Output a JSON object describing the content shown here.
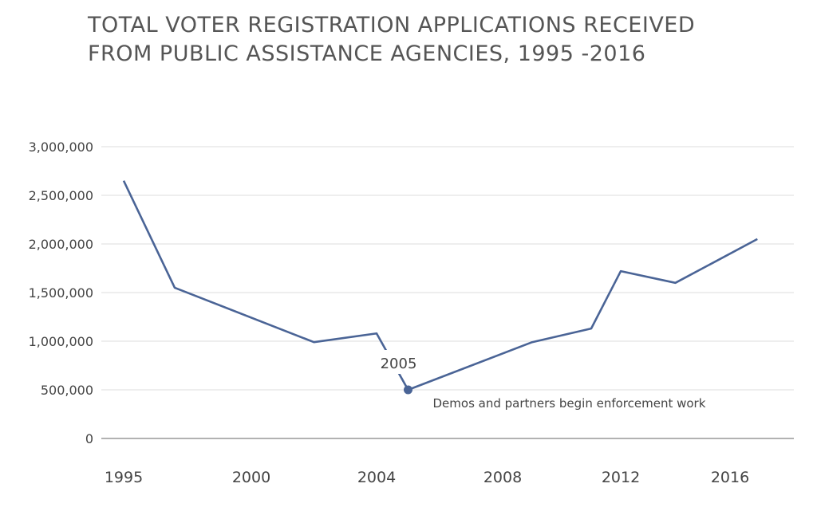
{
  "title_line1": "TOTAL VOTER REGISTRATION APPLICATIONS RECEIVED",
  "title_line2": "FROM PUBLIC ASSISTANCE AGENCIES, 1995 -2016",
  "chart_data": {
    "type": "line",
    "title": "TOTAL VOTER REGISTRATION APPLICATIONS RECEIVED FROM PUBLIC ASSISTANCE AGENCIES, 1995 -2016",
    "xlabel": "",
    "ylabel": "",
    "x_ticks": [
      "1995",
      "2000",
      "2004",
      "2008",
      "2012",
      "2016"
    ],
    "y_ticks": [
      "0",
      "500,000",
      "1,000,000",
      "1,500,000",
      "2,000,000",
      "2,500,000",
      "3,000,000"
    ],
    "ylim": [
      0,
      3000000
    ],
    "grid": true,
    "line_color": "#4a6496",
    "x": [
      1995,
      1997,
      2002,
      2004,
      2005,
      2009,
      2011,
      2012,
      2014,
      2017
    ],
    "y": [
      2650000,
      1550000,
      990000,
      1080000,
      500000,
      990000,
      1130000,
      1720000,
      1600000,
      2050000
    ],
    "annotations": [
      {
        "x": 2005,
        "y": 500000,
        "label": "2005",
        "note": "Demos and partners begin enforcement work"
      }
    ]
  }
}
